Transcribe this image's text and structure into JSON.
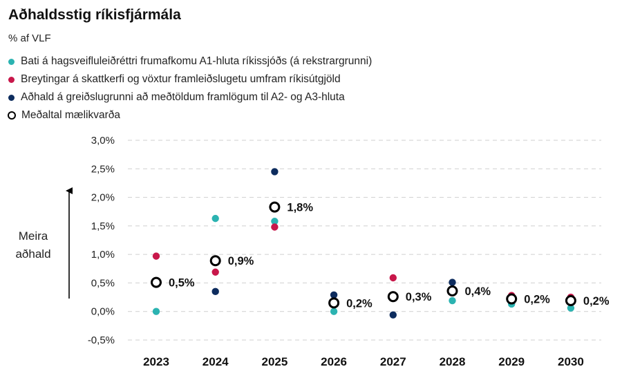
{
  "chart_data": {
    "type": "scatter",
    "title": "Aðhaldsstig ríkisfjármála",
    "subtitle": "% af VLF",
    "annotation": [
      "Meira",
      "aðhald"
    ],
    "categories": [
      "2023",
      "2024",
      "2025",
      "2026",
      "2027",
      "2028",
      "2029",
      "2030"
    ],
    "ylim": [
      -0.5,
      3.0
    ],
    "yticks": [
      -0.5,
      0.0,
      0.5,
      1.0,
      1.5,
      2.0,
      2.5,
      3.0
    ],
    "ytick_labels": [
      "-0,5%",
      "0,0%",
      "0,5%",
      "1,0%",
      "1,5%",
      "2,0%",
      "2,5%",
      "3,0%"
    ],
    "grid": "horizontal-dashed",
    "legend_position": "top-left",
    "series": [
      {
        "name": "Bati á hagsveifluleiðréttri frumafkomu A1-hluta ríkissjóðs (á rekstrargrunni)",
        "color": "#2bb3b1",
        "marker": "dot",
        "values": [
          0.0,
          1.63,
          1.58,
          0.0,
          null,
          0.19,
          0.13,
          0.06
        ]
      },
      {
        "name": "Breytingar á skattkerfi og vöxtur framleiðslugetu umfram ríkisútgjöld",
        "color": "#c8174a",
        "marker": "dot",
        "values": [
          0.97,
          0.69,
          1.48,
          null,
          0.59,
          null,
          0.28,
          0.25
        ]
      },
      {
        "name": "Aðhald á greiðslugrunni að meðtöldum framlögum til A2- og A3-hluta",
        "color": "#0d2c5e",
        "marker": "dot",
        "values": [
          null,
          0.35,
          2.45,
          0.29,
          -0.06,
          0.51,
          null,
          null
        ]
      },
      {
        "name": "Meðaltal mælikvarða",
        "color": "#000000",
        "marker": "ring",
        "values": [
          0.51,
          0.89,
          1.83,
          0.15,
          0.26,
          0.36,
          0.22,
          0.19
        ],
        "labels": [
          "0,5%",
          "0,9%",
          "1,8%",
          "0,2%",
          "0,3%",
          "0,4%",
          "0,2%",
          "0,2%"
        ]
      }
    ]
  }
}
